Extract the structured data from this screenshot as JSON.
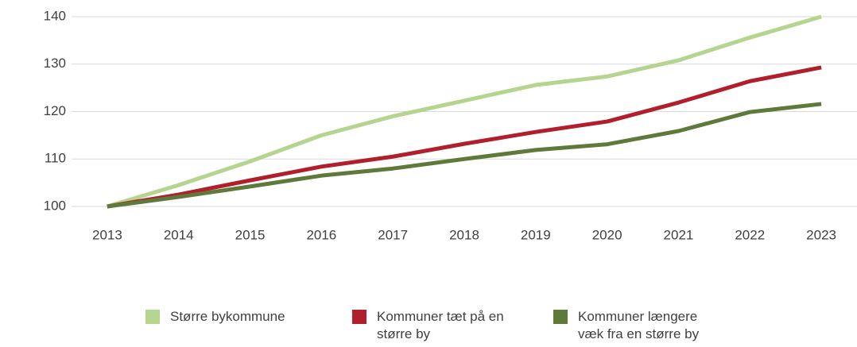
{
  "chart_data": {
    "type": "line",
    "categories": [
      "2013",
      "2014",
      "2015",
      "2016",
      "2017",
      "2018",
      "2019",
      "2020",
      "2021",
      "2022",
      "2023"
    ],
    "series": [
      {
        "name": "Større bykommune",
        "color": "#b5d48e",
        "values": [
          100,
          104.5,
          109.5,
          115,
          119,
          122.3,
          125.6,
          127.4,
          130.8,
          135.6,
          140
        ]
      },
      {
        "name": "Kommuner tæt på en større by",
        "color": "#b11f2c",
        "values": [
          100,
          102.5,
          105.5,
          108.4,
          110.5,
          113.2,
          115.7,
          117.9,
          121.9,
          126.4,
          129.3
        ]
      },
      {
        "name": "Kommuner længere væk fra en større by",
        "color": "#5e7a3b",
        "values": [
          100,
          102,
          104.2,
          106.5,
          108,
          110,
          111.9,
          113.1,
          115.9,
          119.9,
          121.6
        ]
      }
    ],
    "ylim": [
      100,
      140
    ],
    "yticks": [
      100,
      110,
      120,
      130,
      140
    ],
    "grid": true
  }
}
